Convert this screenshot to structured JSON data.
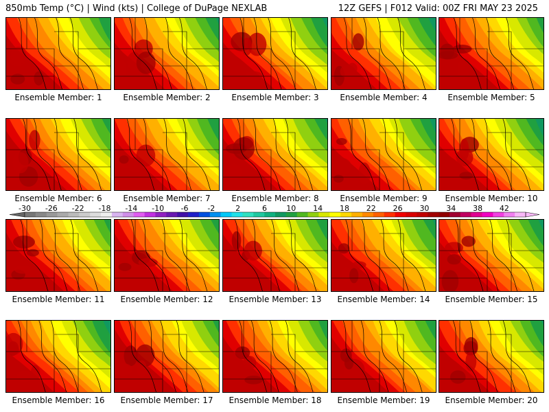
{
  "header": {
    "left": "850mb Temp (°C) | Wind (kts) | College of DuPage NEXLAB",
    "right": "12Z GEFS | F012 Valid: 00Z FRI MAY 23 2025"
  },
  "panels": [
    {
      "label": "Ensemble Member: 1"
    },
    {
      "label": "Ensemble Member: 2"
    },
    {
      "label": "Ensemble Member: 3"
    },
    {
      "label": "Ensemble Member: 4"
    },
    {
      "label": "Ensemble Member: 5"
    },
    {
      "label": "Ensemble Member: 6"
    },
    {
      "label": "Ensemble Member: 7"
    },
    {
      "label": "Ensemble Member: 8"
    },
    {
      "label": "Ensemble Member: 9"
    },
    {
      "label": "Ensemble Member: 10"
    },
    {
      "label": "Ensemble Member: 11"
    },
    {
      "label": "Ensemble Member: 12"
    },
    {
      "label": "Ensemble Member: 13"
    },
    {
      "label": "Ensemble Member: 14"
    },
    {
      "label": "Ensemble Member: 15"
    },
    {
      "label": "Ensemble Member: 16"
    },
    {
      "label": "Ensemble Member: 17"
    },
    {
      "label": "Ensemble Member: 18"
    },
    {
      "label": "Ensemble Member: 19"
    },
    {
      "label": "Ensemble Member: 20"
    }
  ],
  "colorbar": {
    "tick_labels": [
      "-30",
      "-26",
      "-22",
      "-18",
      "-14",
      "-10",
      "-6",
      "-2",
      "2",
      "6",
      "10",
      "14",
      "18",
      "22",
      "26",
      "30",
      "34",
      "38",
      "42"
    ],
    "colors": [
      "#777777",
      "#888888",
      "#999999",
      "#aaaaaa",
      "#bbbbbb",
      "#cccccc",
      "#dddddd",
      "#eeeeee",
      "#d8b4f0",
      "#cf8ee8",
      "#e05cf0",
      "#c030e0",
      "#9020c0",
      "#6818b0",
      "#4010a8",
      "#2020c8",
      "#0050e0",
      "#0090f0",
      "#00c8f8",
      "#20e0e8",
      "#30e0c0",
      "#20c8a0",
      "#10b080",
      "#109860",
      "#20a040",
      "#50b820",
      "#90d010",
      "#d8e800",
      "#ffff00",
      "#ffd800",
      "#ffb000",
      "#ff8800",
      "#ff6000",
      "#ff3000",
      "#f00000",
      "#d80000",
      "#c00000",
      "#a00000",
      "#900000",
      "#a00030",
      "#c00060",
      "#e00090",
      "#f000c0",
      "#f040e0",
      "#f080f0",
      "#f8b8f8"
    ]
  }
}
